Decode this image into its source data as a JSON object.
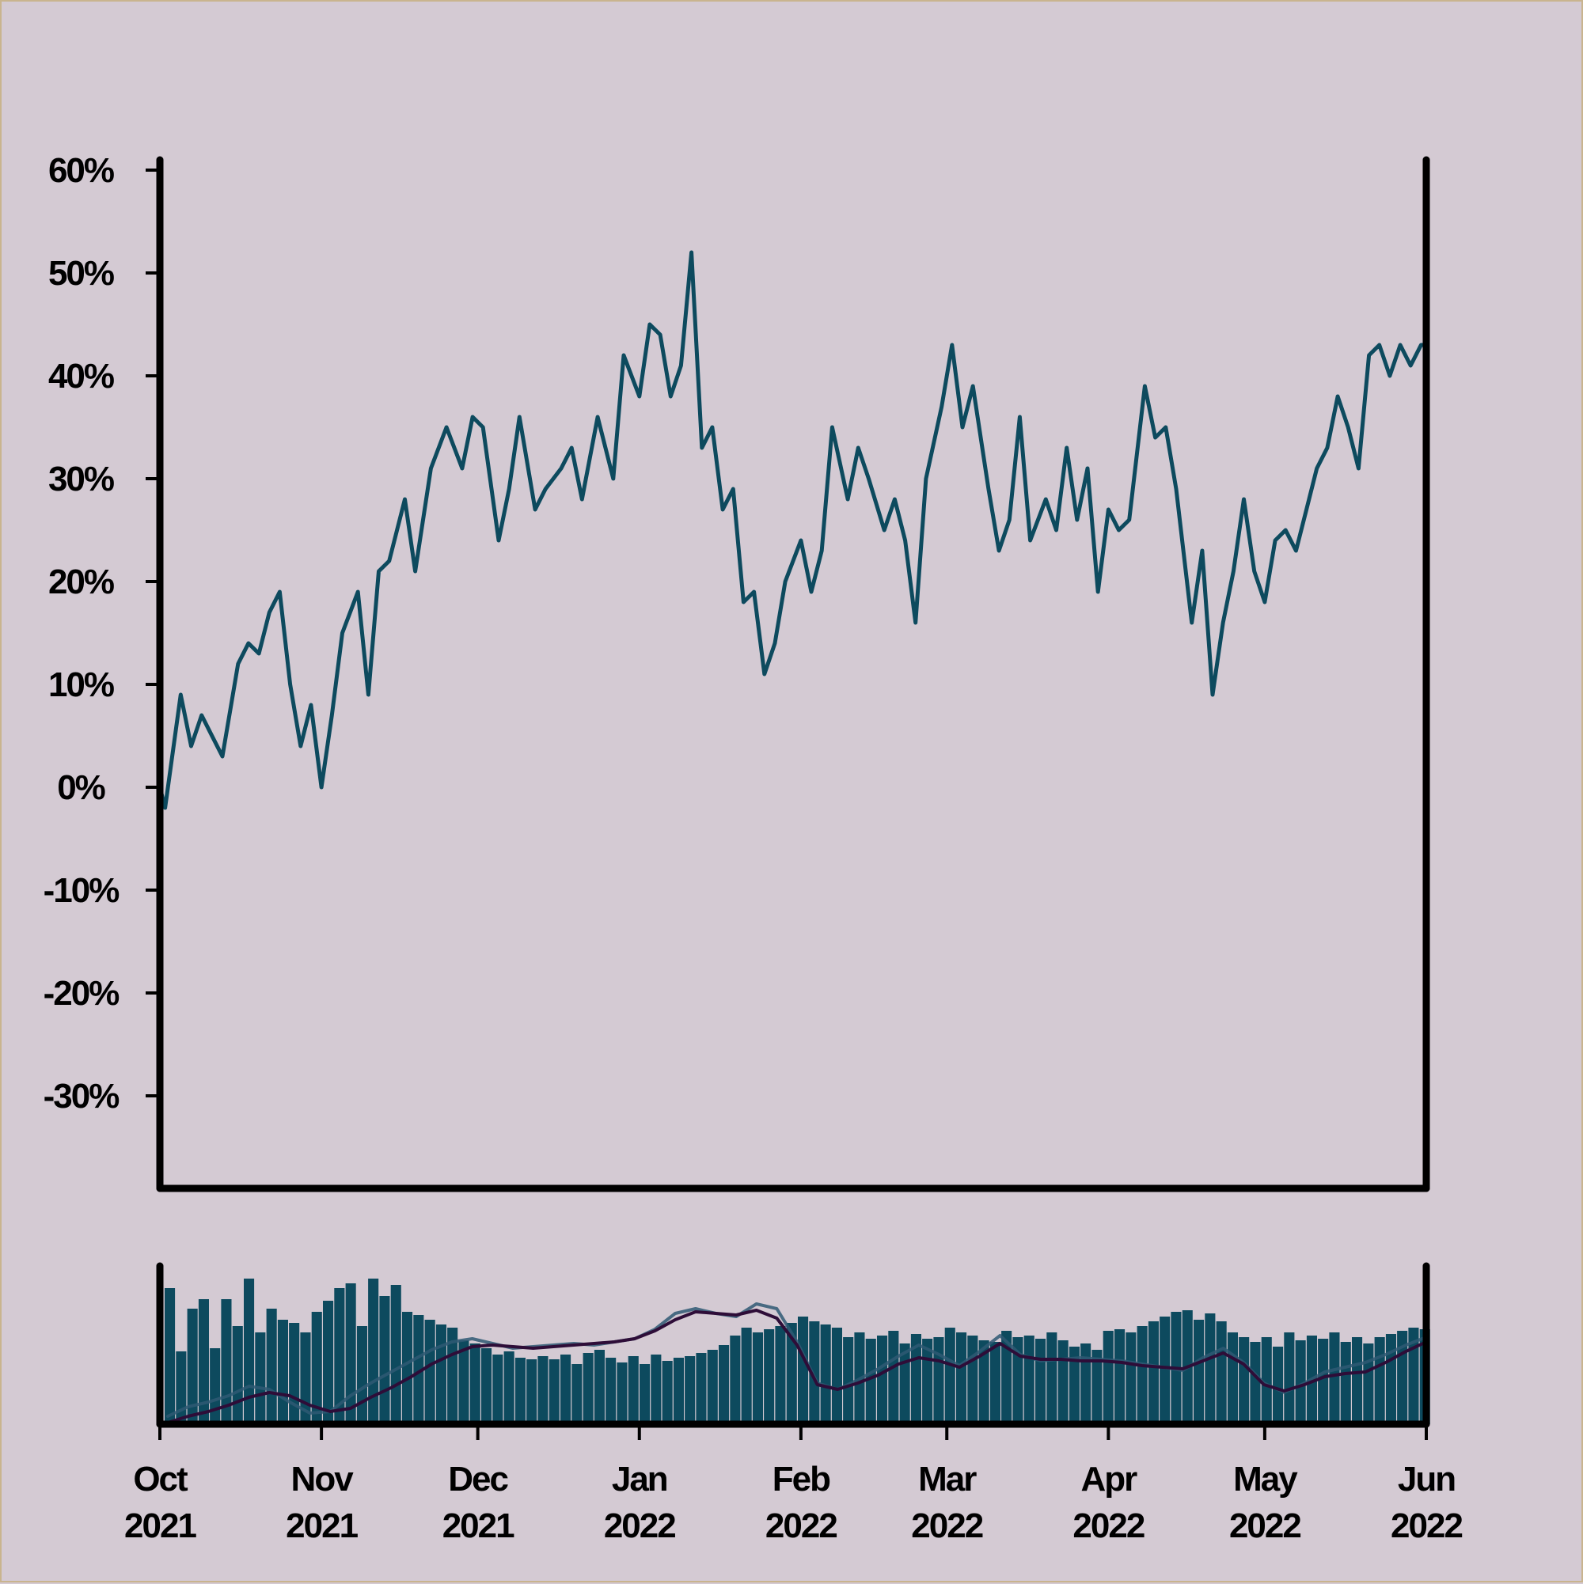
{
  "chart_data": [
    {
      "type": "line",
      "title": "",
      "xlabel": "",
      "ylabel": "",
      "ylim": [
        -39,
        61
      ],
      "yticks": [
        60,
        50,
        40,
        30,
        20,
        10,
        0,
        -10,
        -20,
        -30
      ],
      "ytick_labels": [
        "60%",
        "50%",
        "40%",
        "30%",
        "20%",
        "10%",
        "0%",
        "-10%",
        "-20%",
        "-30%"
      ],
      "xlim": [
        "2021-10-01",
        "2022-06-01"
      ],
      "grid": false,
      "colors": {
        "line": "#0d4a5e",
        "axes": "#000000",
        "background": "#d4cad3"
      },
      "series": [
        {
          "x": [
            "2021-10-01",
            "2021-10-02",
            "2021-10-05",
            "2021-10-07",
            "2021-10-09",
            "2021-10-11",
            "2021-10-13",
            "2021-10-16",
            "2021-10-18",
            "2021-10-20",
            "2021-10-22",
            "2021-10-24",
            "2021-10-26",
            "2021-10-28",
            "2021-10-30",
            "2021-11-01",
            "2021-11-03",
            "2021-11-05",
            "2021-11-08",
            "2021-11-10",
            "2021-11-12",
            "2021-11-14",
            "2021-11-17",
            "2021-11-19",
            "2021-11-22",
            "2021-11-25",
            "2021-11-28",
            "2021-11-30",
            "2021-12-02",
            "2021-12-05",
            "2021-12-07",
            "2021-12-09",
            "2021-12-12",
            "2021-12-14",
            "2021-12-17",
            "2021-12-19",
            "2021-12-21",
            "2021-12-24",
            "2021-12-27",
            "2021-12-29",
            "2022-01-01",
            "2022-01-03",
            "2022-01-05",
            "2022-01-07",
            "2022-01-09",
            "2022-01-11",
            "2022-01-13",
            "2022-01-15",
            "2022-01-17",
            "2022-01-19",
            "2022-01-21",
            "2022-01-23",
            "2022-01-25",
            "2022-01-27",
            "2022-01-29",
            "2022-02-01",
            "2022-02-03",
            "2022-02-05",
            "2022-02-07",
            "2022-02-10",
            "2022-02-12",
            "2022-02-14",
            "2022-02-17",
            "2022-02-19",
            "2022-02-21",
            "2022-02-23",
            "2022-02-25",
            "2022-02-28",
            "2022-03-02",
            "2022-03-04",
            "2022-03-06",
            "2022-03-09",
            "2022-03-11",
            "2022-03-13",
            "2022-03-15",
            "2022-03-17",
            "2022-03-20",
            "2022-03-22",
            "2022-03-24",
            "2022-03-26",
            "2022-03-28",
            "2022-03-30",
            "2022-04-01",
            "2022-04-03",
            "2022-04-05",
            "2022-04-08",
            "2022-04-10",
            "2022-04-12",
            "2022-04-14",
            "2022-04-17",
            "2022-04-19",
            "2022-04-21",
            "2022-04-23",
            "2022-04-25",
            "2022-04-27",
            "2022-04-29",
            "2022-05-01",
            "2022-05-03",
            "2022-05-05",
            "2022-05-07",
            "2022-05-09",
            "2022-05-11",
            "2022-05-13",
            "2022-05-15",
            "2022-05-17",
            "2022-05-19",
            "2022-05-21",
            "2022-05-23",
            "2022-05-25",
            "2022-05-27",
            "2022-05-29",
            "2022-05-31",
            "2022-06-01"
          ],
          "y": [
            0,
            -2,
            9,
            4,
            7,
            5,
            3,
            12,
            14,
            13,
            17,
            19,
            10,
            4,
            8,
            0,
            7,
            15,
            19,
            9,
            21,
            22,
            28,
            21,
            31,
            35,
            31,
            36,
            35,
            24,
            29,
            36,
            27,
            29,
            31,
            33,
            28,
            36,
            30,
            42,
            38,
            45,
            44,
            38,
            41,
            52,
            33,
            35,
            27,
            29,
            18,
            19,
            11,
            14,
            20,
            24,
            19,
            23,
            35,
            28,
            33,
            30,
            25,
            28,
            24,
            16,
            30,
            37,
            43,
            35,
            39,
            29,
            23,
            26,
            36,
            24,
            28,
            25,
            33,
            26,
            31,
            19,
            27,
            25,
            26,
            39,
            34,
            35,
            29,
            16,
            23,
            9,
            16,
            21,
            28,
            21,
            18,
            24,
            25,
            23,
            27,
            31,
            33,
            38,
            35,
            31,
            42,
            43,
            40,
            43,
            41,
            43,
            43
          ]
        }
      ]
    },
    {
      "type": "bar",
      "title": "",
      "xlabel": "",
      "ylabel": "",
      "ylim": [
        0,
        1
      ],
      "xlim": [
        "2021-10-01",
        "2022-06-01"
      ],
      "xtick_months": [
        "Oct",
        "Nov",
        "Dec",
        "Jan",
        "Feb",
        "Mar",
        "Apr",
        "May",
        "Jun"
      ],
      "xtick_years": [
        "2021",
        "2021",
        "2021",
        "2022",
        "2022",
        "2022",
        "2022",
        "2022",
        "2022"
      ],
      "grid": false,
      "colors": {
        "bars": "#0d4a5e",
        "fast_line": "#2f5973",
        "slow_line": "#2e0d38",
        "axes": "#000000"
      },
      "volume": [
        0.86,
        0.46,
        0.73,
        0.79,
        0.48,
        0.79,
        0.62,
        0.92,
        0.58,
        0.73,
        0.66,
        0.64,
        0.58,
        0.71,
        0.78,
        0.86,
        0.89,
        0.62,
        0.92,
        0.81,
        0.88,
        0.71,
        0.69,
        0.66,
        0.63,
        0.61,
        0.53,
        0.51,
        0.48,
        0.44,
        0.46,
        0.42,
        0.41,
        0.43,
        0.41,
        0.44,
        0.38,
        0.45,
        0.47,
        0.42,
        0.39,
        0.43,
        0.38,
        0.44,
        0.4,
        0.42,
        0.43,
        0.45,
        0.47,
        0.5,
        0.56,
        0.61,
        0.58,
        0.6,
        0.62,
        0.64,
        0.68,
        0.65,
        0.63,
        0.61,
        0.55,
        0.58,
        0.54,
        0.56,
        0.59,
        0.51,
        0.57,
        0.54,
        0.55,
        0.61,
        0.58,
        0.56,
        0.53,
        0.52,
        0.59,
        0.55,
        0.56,
        0.54,
        0.58,
        0.53,
        0.49,
        0.51,
        0.47,
        0.59,
        0.6,
        0.58,
        0.62,
        0.65,
        0.68,
        0.71,
        0.72,
        0.66,
        0.7,
        0.65,
        0.58,
        0.55,
        0.52,
        0.55,
        0.49,
        0.58,
        0.53,
        0.56,
        0.54,
        0.58,
        0.52,
        0.55,
        0.51,
        0.55,
        0.57,
        0.59,
        0.61,
        0.6
      ],
      "series": [
        {
          "values": [
            0.05,
            0.11,
            0.14,
            0.18,
            0.24,
            0.22,
            0.14,
            0.07,
            0.08,
            0.18,
            0.26,
            0.33,
            0.4,
            0.47,
            0.52,
            0.54,
            0.51,
            0.48,
            0.49,
            0.5,
            0.51,
            0.5,
            0.52,
            0.54,
            0.6,
            0.7,
            0.73,
            0.7,
            0.68,
            0.76,
            0.73,
            0.52,
            0.26,
            0.22,
            0.28,
            0.35,
            0.43,
            0.5,
            0.44,
            0.37,
            0.46,
            0.56,
            0.44,
            0.4,
            0.41,
            0.42,
            0.41,
            0.4,
            0.38,
            0.36,
            0.34,
            0.42,
            0.48,
            0.39,
            0.26,
            0.2,
            0.26,
            0.33,
            0.36,
            0.39,
            0.44,
            0.5,
            0.55
          ]
        },
        {
          "values": [
            0.01,
            0.05,
            0.08,
            0.12,
            0.17,
            0.2,
            0.18,
            0.12,
            0.08,
            0.1,
            0.17,
            0.23,
            0.3,
            0.38,
            0.44,
            0.49,
            0.5,
            0.49,
            0.48,
            0.49,
            0.5,
            0.51,
            0.52,
            0.54,
            0.59,
            0.66,
            0.71,
            0.7,
            0.69,
            0.72,
            0.67,
            0.5,
            0.25,
            0.22,
            0.26,
            0.31,
            0.38,
            0.42,
            0.4,
            0.36,
            0.43,
            0.51,
            0.43,
            0.41,
            0.41,
            0.4,
            0.4,
            0.39,
            0.37,
            0.36,
            0.35,
            0.4,
            0.45,
            0.38,
            0.25,
            0.21,
            0.25,
            0.3,
            0.32,
            0.33,
            0.39,
            0.46,
            0.52
          ]
        }
      ]
    }
  ]
}
